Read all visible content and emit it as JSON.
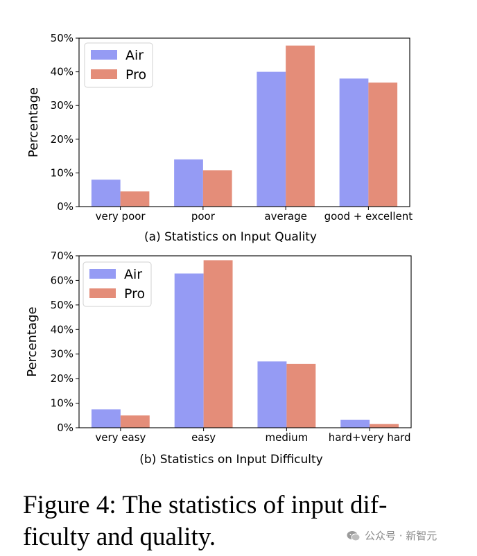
{
  "chart_data": [
    {
      "type": "bar",
      "title": "(a) Statistics on Input Quality",
      "xlabel": "",
      "ylabel": "Percentage",
      "categories": [
        "very poor",
        "poor",
        "average",
        "good + excellent"
      ],
      "series": [
        {
          "name": "Air",
          "values": [
            8,
            14,
            40,
            38
          ]
        },
        {
          "name": "Pro",
          "values": [
            4.5,
            10.8,
            47.8,
            36.8
          ]
        }
      ],
      "ylim": [
        0,
        50
      ],
      "yticks": [
        0,
        10,
        20,
        30,
        40,
        50
      ],
      "ytick_labels": [
        "0%",
        "10%",
        "20%",
        "30%",
        "40%",
        "50%"
      ],
      "legend": "top-left",
      "grid": false
    },
    {
      "type": "bar",
      "title": "(b) Statistics on Input Difficulty",
      "xlabel": "",
      "ylabel": "Percentage",
      "categories": [
        "very easy",
        "easy",
        "medium",
        "hard+very hard"
      ],
      "series": [
        {
          "name": "Air",
          "values": [
            7.5,
            62.8,
            27,
            3.2
          ]
        },
        {
          "name": "Pro",
          "values": [
            5,
            68.2,
            26,
            1.5
          ]
        }
      ],
      "ylim": [
        0,
        70
      ],
      "yticks": [
        0,
        10,
        20,
        30,
        40,
        50,
        60,
        70
      ],
      "ytick_labels": [
        "0%",
        "10%",
        "20%",
        "30%",
        "40%",
        "50%",
        "60%",
        "70%"
      ],
      "legend": "top-left",
      "grid": false
    }
  ],
  "colors": {
    "Air": "#959bf4",
    "Pro": "#e48d79"
  },
  "caption": "Figure 4: The statistics of input difficulty and quality.",
  "caption_lines": [
    "Figure 4: The statistics of input dif-",
    "ficulty and quality."
  ],
  "watermark": "公众号 · 新智元",
  "watermark_icon": "wechat-icon"
}
